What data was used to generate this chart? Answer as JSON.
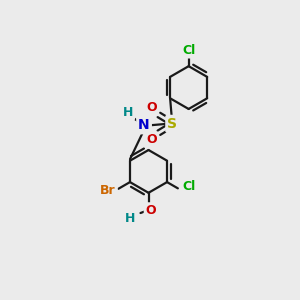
{
  "background_color": "#ebebeb",
  "bond_color": "#1a1a1a",
  "atom_colors": {
    "Cl": "#00aa00",
    "Br": "#cc6600",
    "N": "#0000cc",
    "O": "#cc0000",
    "S": "#aaaa00",
    "H": "#008888"
  },
  "figsize": [
    3.0,
    3.0
  ],
  "dpi": 100,
  "lw": 1.6,
  "r": 0.72
}
